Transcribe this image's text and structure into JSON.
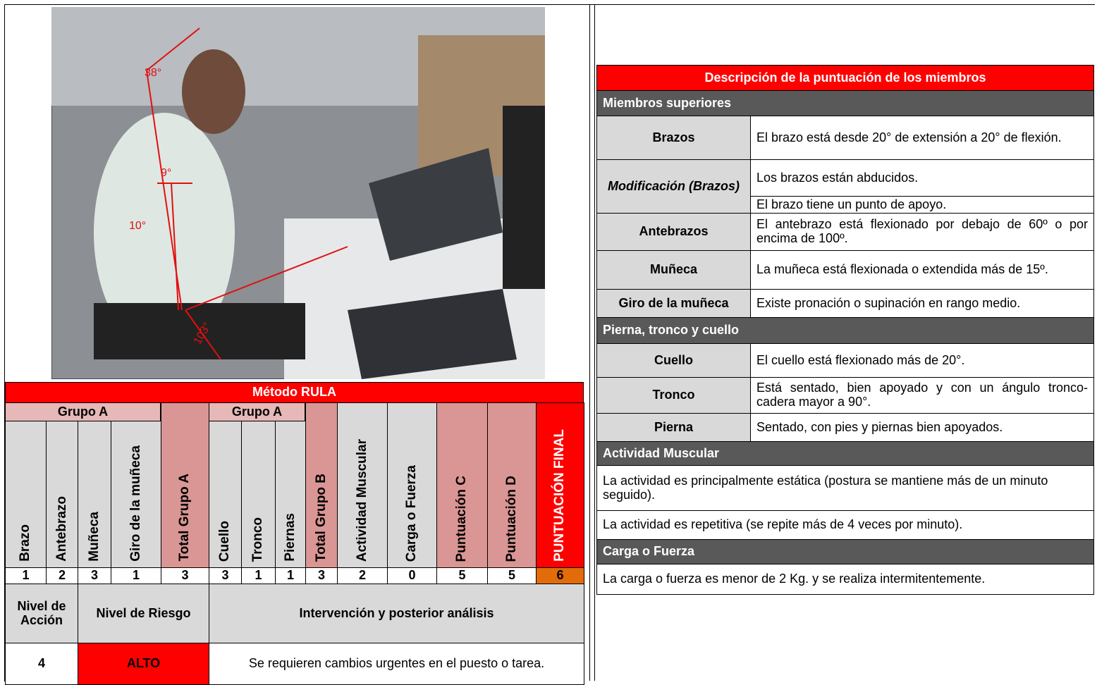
{
  "photo": {
    "angle_labels": [
      "38°",
      "9°",
      "10°",
      "103°"
    ]
  },
  "rula": {
    "title": "Método RULA",
    "group_a": "Grupo A",
    "group_b": "Grupo A",
    "columns": [
      "Brazo",
      "Antebrazo",
      "Muñeca",
      "Giro de la muñeca",
      "Total Grupo A",
      "Cuello",
      "Tronco",
      "Piernas",
      "Total Grupo B",
      "Actividad Muscular",
      "Carga o Fuerza",
      "Puntuación C",
      "Puntuación D",
      "PUNTUACIÓN FINAL"
    ],
    "scores": [
      1,
      2,
      3,
      1,
      3,
      3,
      1,
      1,
      3,
      2,
      0,
      5,
      5,
      6
    ],
    "action_headers": [
      "Nivel de Acción",
      "Nivel de Riesgo",
      "Intervención y posterior análisis"
    ],
    "action_values": [
      4,
      "ALTO",
      "Se requieren cambios urgentes en el puesto o tarea."
    ]
  },
  "description": {
    "title": "Descripción de la puntuación de los miembros",
    "sections": [
      {
        "title": "Miembros superiores",
        "rows": [
          {
            "label": "Brazos",
            "texts": [
              "El brazo está desde 20° de extensión a 20° de flexión."
            ]
          },
          {
            "label": "Modificación (Brazos)",
            "texts": [
              "Los brazos están abducidos.",
              "El brazo tiene un punto de apoyo."
            ]
          },
          {
            "label": "Antebrazos",
            "texts": [
              "El antebrazo está flexionado por debajo de 60º o por encima de 100º."
            ]
          },
          {
            "label": "Muñeca",
            "texts": [
              "La muñeca está flexionada o extendida más de 15º."
            ]
          },
          {
            "label": "Giro de la muñeca",
            "texts": [
              "Existe pronación o supinación en rango medio."
            ]
          }
        ]
      },
      {
        "title": "Pierna, tronco y cuello",
        "rows": [
          {
            "label": "Cuello",
            "texts": [
              "El cuello está flexionado más de 20°."
            ]
          },
          {
            "label": "Tronco",
            "texts": [
              "Está sentado, bien apoyado y con un ángulo tronco-cadera mayor a 90°."
            ]
          },
          {
            "label": "Pierna",
            "texts": [
              "Sentado, con pies y piernas bien apoyados."
            ]
          }
        ]
      },
      {
        "title": "Actividad Muscular",
        "paragraphs": [
          "La actividad es principalmente estática (postura se mantiene más de un minuto seguido).",
          "La actividad es repetitiva (se repite más de 4 veces por minuto)."
        ]
      },
      {
        "title": "Carga o Fuerza",
        "paragraphs": [
          "La carga o fuerza es menor de 2 Kg. y se realiza intermitentemente."
        ]
      }
    ]
  }
}
